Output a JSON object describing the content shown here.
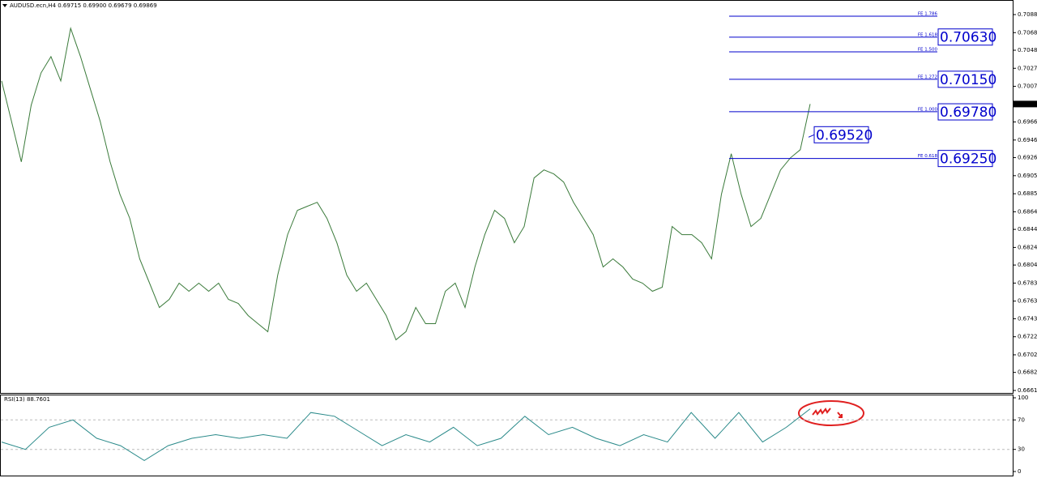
{
  "chart_data": [
    {
      "type": "line",
      "title": "AUDUSD.ecn,H4  0.69715 0.69900 0.69679 0.69869",
      "color": "#3a7a3a",
      "values": [
        0.70131,
        0.69672,
        0.69212,
        0.69856,
        0.70223,
        0.70407,
        0.70131,
        0.70729,
        0.70407,
        0.7004,
        0.69672,
        0.69212,
        0.68845,
        0.68569,
        0.6811,
        0.67834,
        0.67558,
        0.6765,
        0.67834,
        0.67742,
        0.67834,
        0.67742,
        0.67834,
        0.6765,
        0.67604,
        0.67466,
        0.67374,
        0.67283,
        0.67926,
        0.68385,
        0.68661,
        0.68707,
        0.68753,
        0.68569,
        0.68293,
        0.67926,
        0.67742,
        0.67834,
        0.6765,
        0.67466,
        0.67191,
        0.67283,
        0.67558,
        0.67374,
        0.67374,
        0.67742,
        0.67834,
        0.67558,
        0.68018,
        0.68385,
        0.68661,
        0.68569,
        0.68293,
        0.68477,
        0.69029,
        0.69121,
        0.69075,
        0.68983,
        0.68753,
        0.68569,
        0.68385,
        0.68018,
        0.6811,
        0.68018,
        0.6788,
        0.67834,
        0.67742,
        0.67788,
        0.68477,
        0.68385,
        0.68385,
        0.68293,
        0.6811,
        0.68845,
        0.69304,
        0.68845,
        0.68477,
        0.68569,
        0.68845,
        0.69121,
        0.69258,
        0.6935,
        0.69869
      ],
      "ylim": [
        0.66587,
        0.71023
      ],
      "yticks": [
        0.70885,
        {
          "value": 0.7068,
          "label": "0.70680"
        },
        {
          "value": 0.7048,
          "label": "0.70480"
        },
        0.70275,
        {
          "value": 0.7007,
          "label": "0.70070"
        },
        0.69665,
        {
          "value": 0.6946,
          "label": "0.69460"
        },
        {
          "value": 0.6926,
          "label": "0.69260"
        },
        0.69055,
        {
          "value": 0.6885,
          "label": "0.68850"
        },
        0.68645,
        0.68445,
        {
          "value": 0.6824,
          "label": "0.68240"
        },
        {
          "value": 0.6804,
          "label": "0.68040"
        },
        0.67835,
        {
          "value": 0.6763,
          "label": "0.67630"
        },
        {
          "value": 0.6743,
          "label": "0.67430"
        },
        0.67225,
        {
          "value": 0.6702,
          "label": "0.67020"
        },
        {
          "value": 0.6682,
          "label": "0.66820"
        },
        0.66615
      ],
      "last_price": 0.69869,
      "fib_levels": [
        {
          "label": "FE 1.786",
          "value": 0.70867
        },
        {
          "label": "FE 1.618",
          "value": 0.70628
        },
        {
          "label": "FE 1.500",
          "value": 0.70462
        },
        {
          "label": "FE 1.272",
          "value": 0.7015
        },
        {
          "label": "FE 1.000",
          "value": 0.69782
        },
        {
          "label": "FE 0.618",
          "value": 0.6925
        }
      ],
      "price_boxes": [
        {
          "value": 0.7063,
          "label": "0.70630"
        },
        {
          "value": 0.7015,
          "label": "0.70150"
        },
        {
          "value": 0.6978,
          "label": "0.69780"
        },
        {
          "value": 0.6952,
          "label": "0.69520"
        },
        {
          "value": 0.6925,
          "label": "0.69250"
        }
      ]
    },
    {
      "type": "line",
      "title": "RSI(13) 88.7601",
      "color": "#2a8a8a",
      "values": [
        40,
        30,
        60,
        70,
        45,
        35,
        15,
        35,
        45,
        50,
        45,
        50,
        45,
        80,
        75,
        55,
        35,
        50,
        40,
        60,
        35,
        45,
        75,
        50,
        60,
        45,
        35,
        50,
        40,
        80,
        45,
        80,
        40,
        60,
        85
      ],
      "ylim": [
        0,
        100
      ],
      "yticks": [
        100,
        70,
        30,
        0
      ],
      "grid_ticks": [
        70,
        30
      ]
    }
  ]
}
